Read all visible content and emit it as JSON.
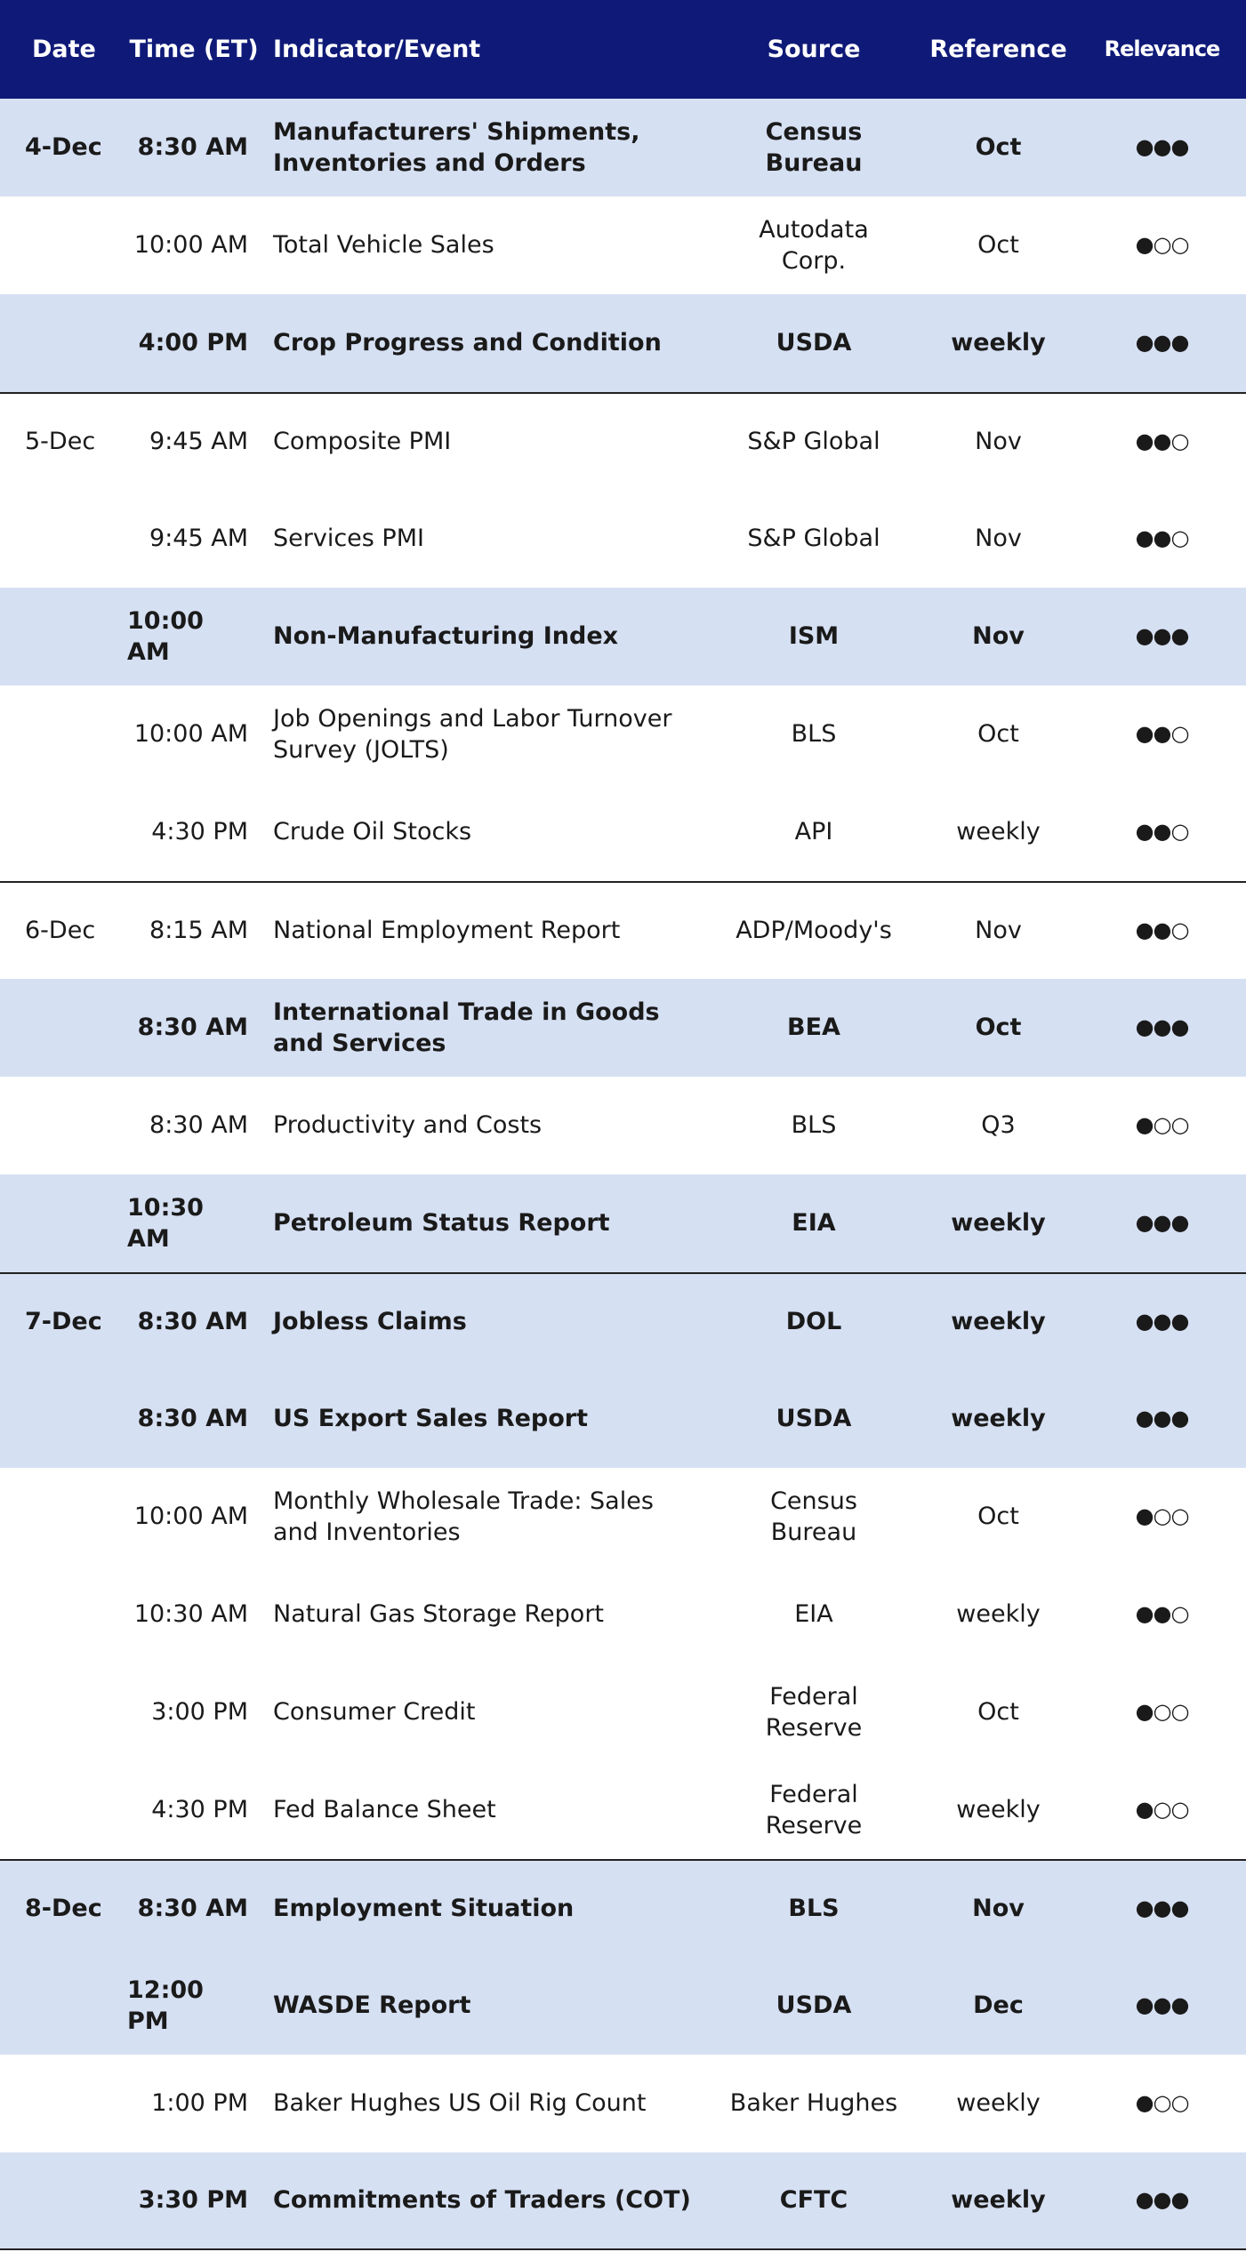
{
  "header": {
    "date": "Date",
    "time": "Time (ET)",
    "event": "Indicator/Event",
    "source": "Source",
    "reference": "Reference",
    "relevance": "Relevance"
  },
  "rows": [
    {
      "date": "4-Dec",
      "time": "8:30 AM",
      "event": "Manufacturers' Shipments, Inventories and Orders",
      "source": "Census Bureau",
      "reference": "Oct",
      "relevance": "●●●",
      "highlight": true
    },
    {
      "time": "10:00 AM",
      "event": "Total Vehicle Sales",
      "source": "Autodata Corp.",
      "reference": "Oct",
      "relevance": "●○○",
      "highlight": false
    },
    {
      "time": "4:00 PM",
      "event": "Crop Progress and Condition",
      "source": "USDA",
      "reference": "weekly",
      "relevance": "●●●",
      "highlight": true
    },
    {
      "date": "5-Dec",
      "time": "9:45 AM",
      "event": "Composite PMI",
      "source": "S&P Global",
      "reference": "Nov",
      "relevance": "●●○",
      "highlight": false
    },
    {
      "time": "9:45 AM",
      "event": "Services PMI",
      "source": "S&P Global",
      "reference": "Nov",
      "relevance": "●●○",
      "highlight": false
    },
    {
      "time": "10:00 AM",
      "event": "Non-Manufacturing Index",
      "source": "ISM",
      "reference": "Nov",
      "relevance": "●●●",
      "highlight": true
    },
    {
      "time": "10:00 AM",
      "event": "Job Openings and Labor Turnover Survey (JOLTS)",
      "source": "BLS",
      "reference": "Oct",
      "relevance": "●●○",
      "highlight": false
    },
    {
      "time": "4:30 PM",
      "event": "Crude Oil Stocks",
      "source": "API",
      "reference": "weekly",
      "relevance": "●●○",
      "highlight": false
    },
    {
      "date": "6-Dec",
      "time": "8:15 AM",
      "event": "National Employment Report",
      "source": "ADP/Moody's",
      "reference": "Nov",
      "relevance": "●●○",
      "highlight": false
    },
    {
      "time": "8:30 AM",
      "event": "International Trade in Goods and Services",
      "source": "BEA",
      "reference": "Oct",
      "relevance": "●●●",
      "highlight": true
    },
    {
      "time": "8:30 AM",
      "event": "Productivity and Costs",
      "source": "BLS",
      "reference": "Q3",
      "relevance": "●○○",
      "highlight": false
    },
    {
      "time": "10:30 AM",
      "event": "Petroleum Status Report",
      "source": "EIA",
      "reference": "weekly",
      "relevance": "●●●",
      "highlight": true
    },
    {
      "date": "7-Dec",
      "time": "8:30 AM",
      "event": "Jobless Claims",
      "source": "DOL",
      "reference": "weekly",
      "relevance": "●●●",
      "highlight": true
    },
    {
      "time": "8:30 AM",
      "event": "US Export Sales Report",
      "source": "USDA",
      "reference": "weekly",
      "relevance": "●●●",
      "highlight": true
    },
    {
      "time": "10:00 AM",
      "event": "Monthly Wholesale Trade: Sales and Inventories",
      "source": "Census Bureau",
      "reference": "Oct",
      "relevance": "●○○",
      "highlight": false
    },
    {
      "time": "10:30 AM",
      "event": "Natural Gas Storage Report",
      "source": "EIA",
      "reference": "weekly",
      "relevance": "●●○",
      "highlight": false
    },
    {
      "time": "3:00 PM",
      "event": "Consumer Credit",
      "source": "Federal Reserve",
      "reference": "Oct",
      "relevance": "●○○",
      "highlight": false
    },
    {
      "time": "4:30 PM",
      "event": "Fed Balance Sheet",
      "source": "Federal Reserve",
      "reference": "weekly",
      "relevance": "●○○",
      "highlight": false
    },
    {
      "date": "8-Dec",
      "time": "8:30 AM",
      "event": "Employment Situation",
      "source": "BLS",
      "reference": "Nov",
      "relevance": "●●●",
      "highlight": true
    },
    {
      "time": "12:00 PM",
      "event": "WASDE Report",
      "source": "USDA",
      "reference": "Dec",
      "relevance": "●●●",
      "highlight": true
    },
    {
      "time": "1:00 PM",
      "event": "Baker Hughes US Oil Rig Count",
      "source": "Baker Hughes",
      "reference": "weekly",
      "relevance": "●○○",
      "highlight": false
    },
    {
      "time": "3:30 PM",
      "event": "Commitments of Traders (COT)",
      "source": "CFTC",
      "reference": "weekly",
      "relevance": "●●●",
      "highlight": true
    }
  ]
}
